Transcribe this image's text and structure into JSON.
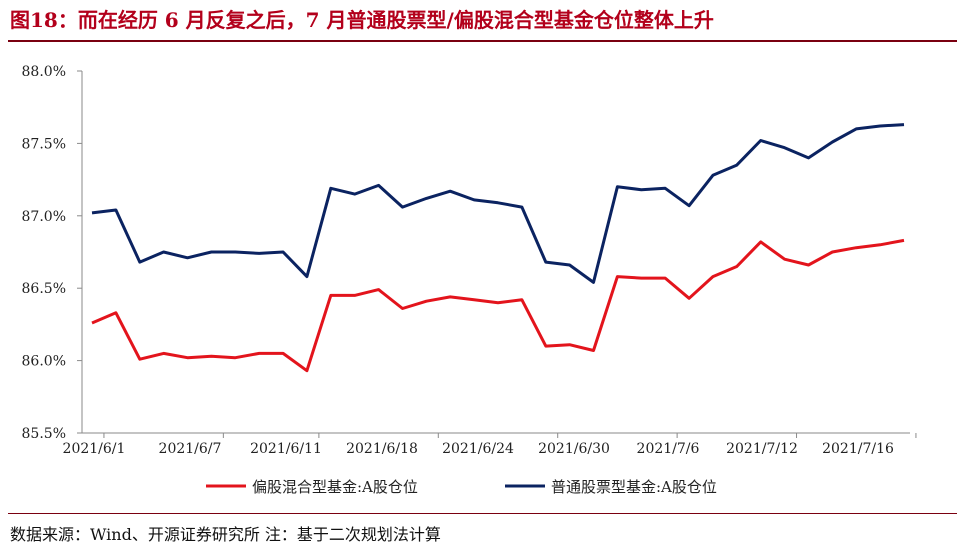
{
  "header": {
    "title": "图18：而在经历 6 月反复之后，7 月普通股票型/偏股混合型基金仓位整体上升"
  },
  "footer": {
    "source": "数据来源：Wind、开源证券研究所  注：基于二次规划法计算"
  },
  "colors": {
    "title": "#b3001b",
    "series_red": "#e3141c",
    "series_navy": "#0b2361"
  },
  "chart_data": {
    "type": "line",
    "ylim": [
      85.5,
      88.0
    ],
    "yticks": [
      "85.5%",
      "86.0%",
      "86.5%",
      "87.0%",
      "87.5%",
      "88.0%"
    ],
    "xticks": [
      "2021/6/1",
      "2021/6/7",
      "2021/6/11",
      "2021/6/18",
      "2021/6/24",
      "2021/6/30",
      "2021/7/6",
      "2021/7/12",
      "2021/7/16"
    ],
    "grid": false,
    "legend_position": "bottom",
    "series": [
      {
        "name": "偏股混合型基金:A股仓位",
        "color": "#e3141c",
        "values": [
          86.26,
          86.33,
          86.01,
          86.05,
          86.02,
          86.03,
          86.02,
          86.05,
          86.05,
          85.93,
          86.45,
          86.45,
          86.49,
          86.36,
          86.41,
          86.44,
          86.42,
          86.4,
          86.42,
          86.1,
          86.11,
          86.07,
          86.58,
          86.57,
          86.57,
          86.43,
          86.58,
          86.65,
          86.82,
          86.7,
          86.66,
          86.75,
          86.78,
          86.8,
          86.83
        ]
      },
      {
        "name": "普通股票型基金:A股仓位",
        "color": "#0b2361",
        "values": [
          87.02,
          87.04,
          86.68,
          86.75,
          86.71,
          86.75,
          86.75,
          86.74,
          86.75,
          86.58,
          87.19,
          87.15,
          87.21,
          87.06,
          87.12,
          87.17,
          87.11,
          87.09,
          87.06,
          86.68,
          86.66,
          86.54,
          87.2,
          87.18,
          87.19,
          87.07,
          87.28,
          87.35,
          87.52,
          87.47,
          87.4,
          87.51,
          87.6,
          87.62,
          87.63
        ]
      }
    ]
  }
}
